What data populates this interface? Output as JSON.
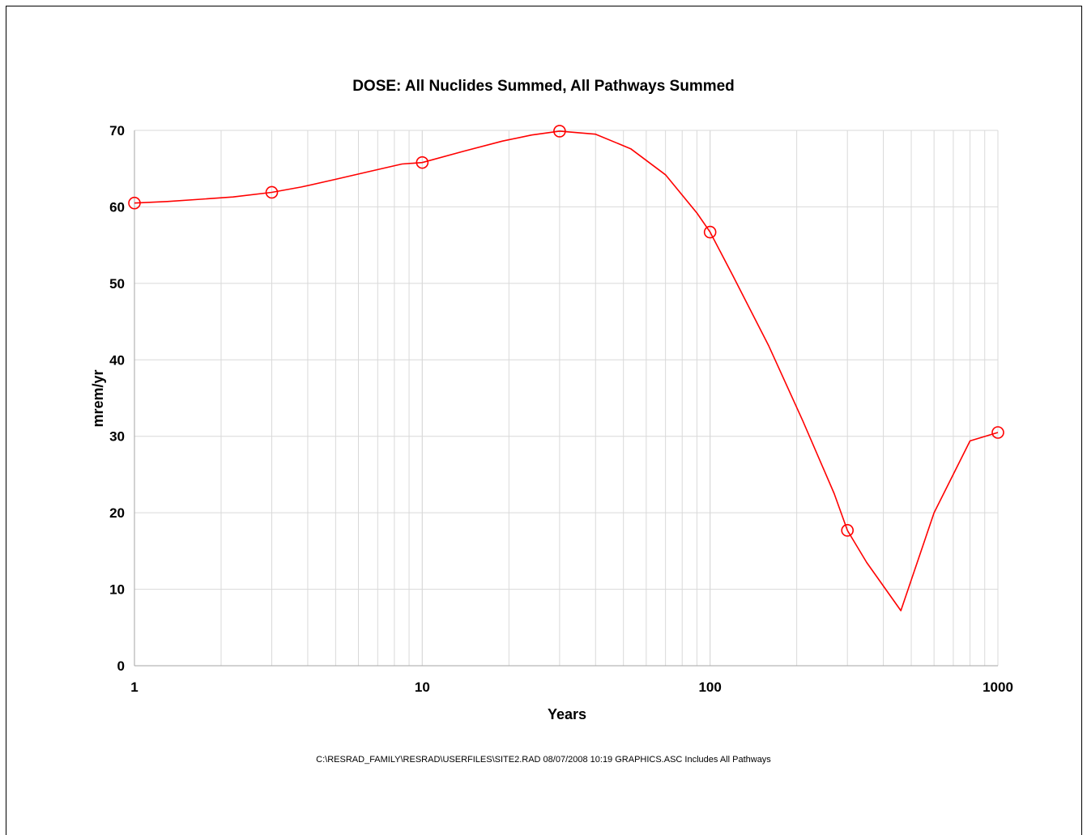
{
  "chart_data": {
    "type": "line",
    "title": "DOSE: All Nuclides Summed, All Pathways Summed",
    "xlabel": "Years",
    "ylabel": "mrem/yr",
    "xscale": "log",
    "xlim": [
      1,
      1000
    ],
    "ylim": [
      0,
      70
    ],
    "xticks": [
      "1",
      "10",
      "100",
      "1000"
    ],
    "yticks": [
      "0",
      "10",
      "20",
      "30",
      "40",
      "50",
      "60",
      "70"
    ],
    "grid": true,
    "line_color": "#ff0000",
    "series": [
      {
        "marker": "circle-open",
        "x": [
          1,
          1.3,
          1.7,
          2.2,
          3,
          3.8,
          5,
          6.5,
          8.5,
          10,
          14,
          19,
          24,
          30,
          40,
          53,
          70,
          90,
          100,
          120,
          160,
          210,
          270,
          300,
          350,
          460,
          600,
          800,
          1000
        ],
        "y": [
          60.5,
          60.7,
          61.0,
          61.3,
          61.9,
          62.6,
          63.6,
          64.6,
          65.6,
          65.8,
          67.3,
          68.6,
          69.4,
          69.9,
          69.5,
          67.6,
          64.2,
          59.2,
          56.7,
          51.0,
          41.8,
          32.0,
          22.5,
          17.7,
          13.5,
          7.2,
          20.0,
          29.4,
          30.5
        ]
      }
    ],
    "markers": [
      {
        "x": 1,
        "y": 60.5
      },
      {
        "x": 3,
        "y": 61.9
      },
      {
        "x": 10,
        "y": 65.8
      },
      {
        "x": 30,
        "y": 69.9
      },
      {
        "x": 100,
        "y": 56.7
      },
      {
        "x": 300,
        "y": 17.7
      },
      {
        "x": 1000,
        "y": 30.5
      }
    ]
  },
  "footer_text": "C:\\RESRAD_FAMILY\\RESRAD\\USERFILES\\SITE2.RAD  08/07/2008  10:19  GRAPHICS.ASC  Includes All Pathways"
}
